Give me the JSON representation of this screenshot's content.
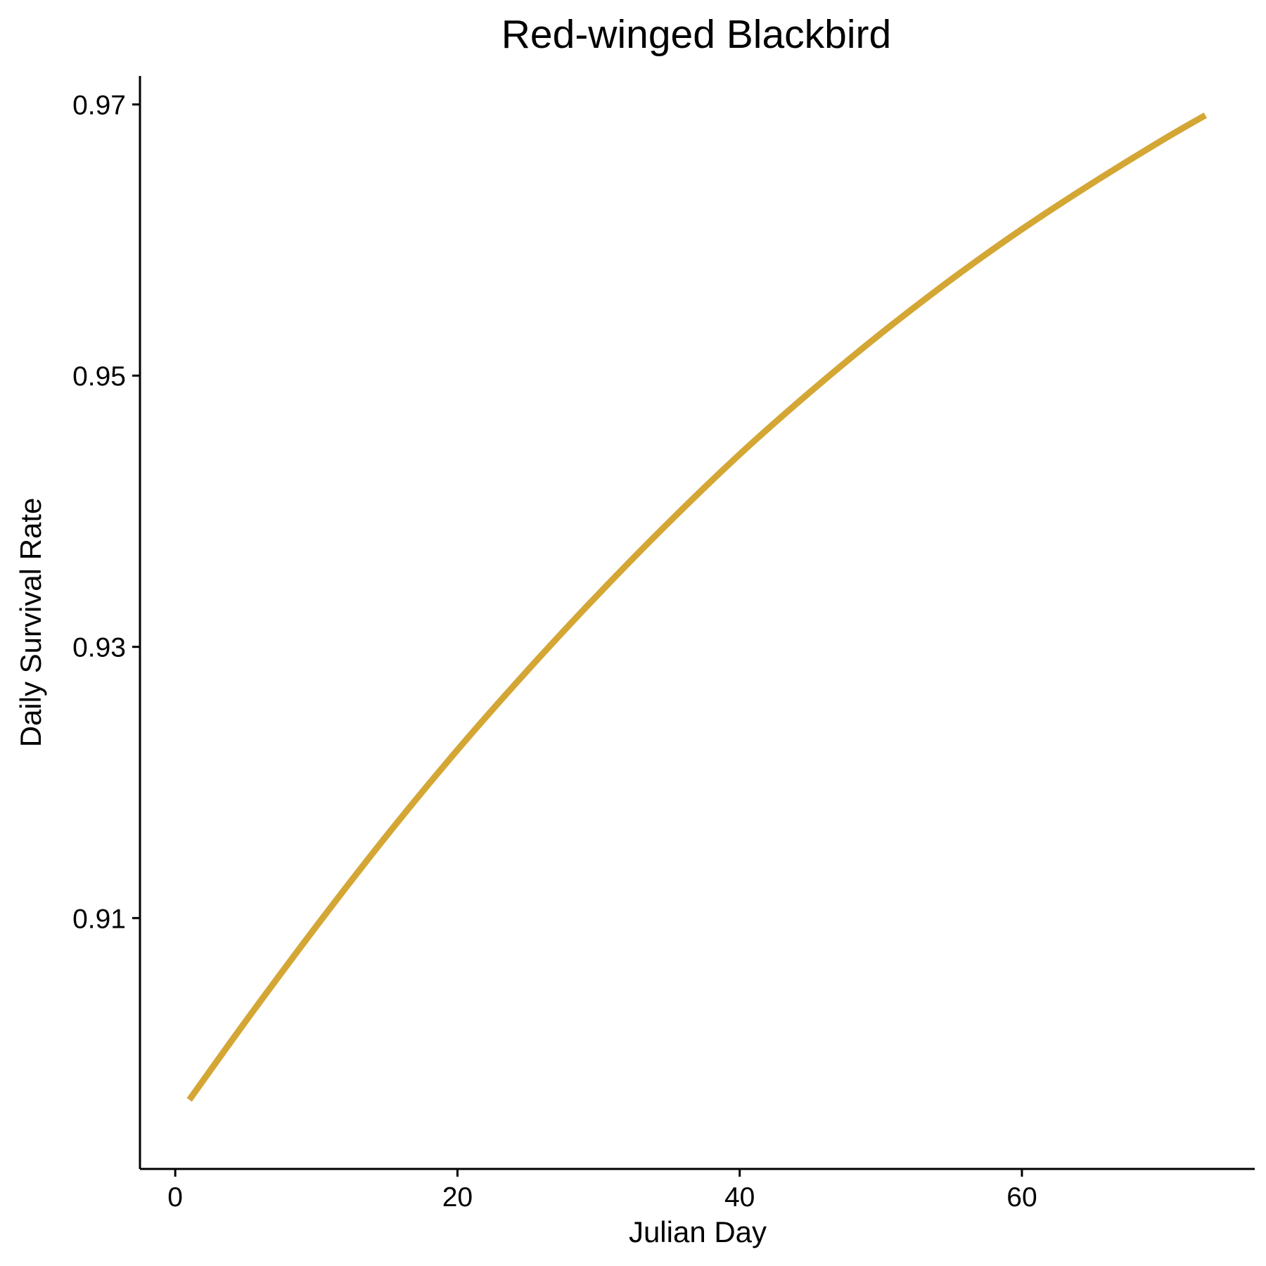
{
  "chart_data": {
    "type": "line",
    "title": "Red-winged Blackbird",
    "xlabel": "Julian Day",
    "ylabel": "Daily Survival Rate",
    "xlim": [
      -2.5,
      76.5
    ],
    "ylim": [
      0.8915,
      0.9721
    ],
    "x_ticks": [
      0,
      20,
      40,
      60
    ],
    "x_tick_labels": [
      "0",
      "20",
      "40",
      "60"
    ],
    "y_ticks": [
      0.91,
      0.93,
      0.95,
      0.97
    ],
    "y_tick_labels": [
      "0.91",
      "0.93",
      "0.95",
      "0.97"
    ],
    "grid": false,
    "legend": "none",
    "series": [
      {
        "color": "#D4A634",
        "x": [
          1,
          5,
          10,
          15,
          20,
          25,
          30,
          35,
          40,
          45,
          50,
          55,
          60,
          65,
          70,
          73
        ],
        "y": [
          0.8966,
          0.9024,
          0.9094,
          0.9161,
          0.9224,
          0.9283,
          0.9339,
          0.9392,
          0.9442,
          0.9488,
          0.9531,
          0.9571,
          0.9608,
          0.9642,
          0.9674,
          0.9692
        ]
      }
    ]
  }
}
